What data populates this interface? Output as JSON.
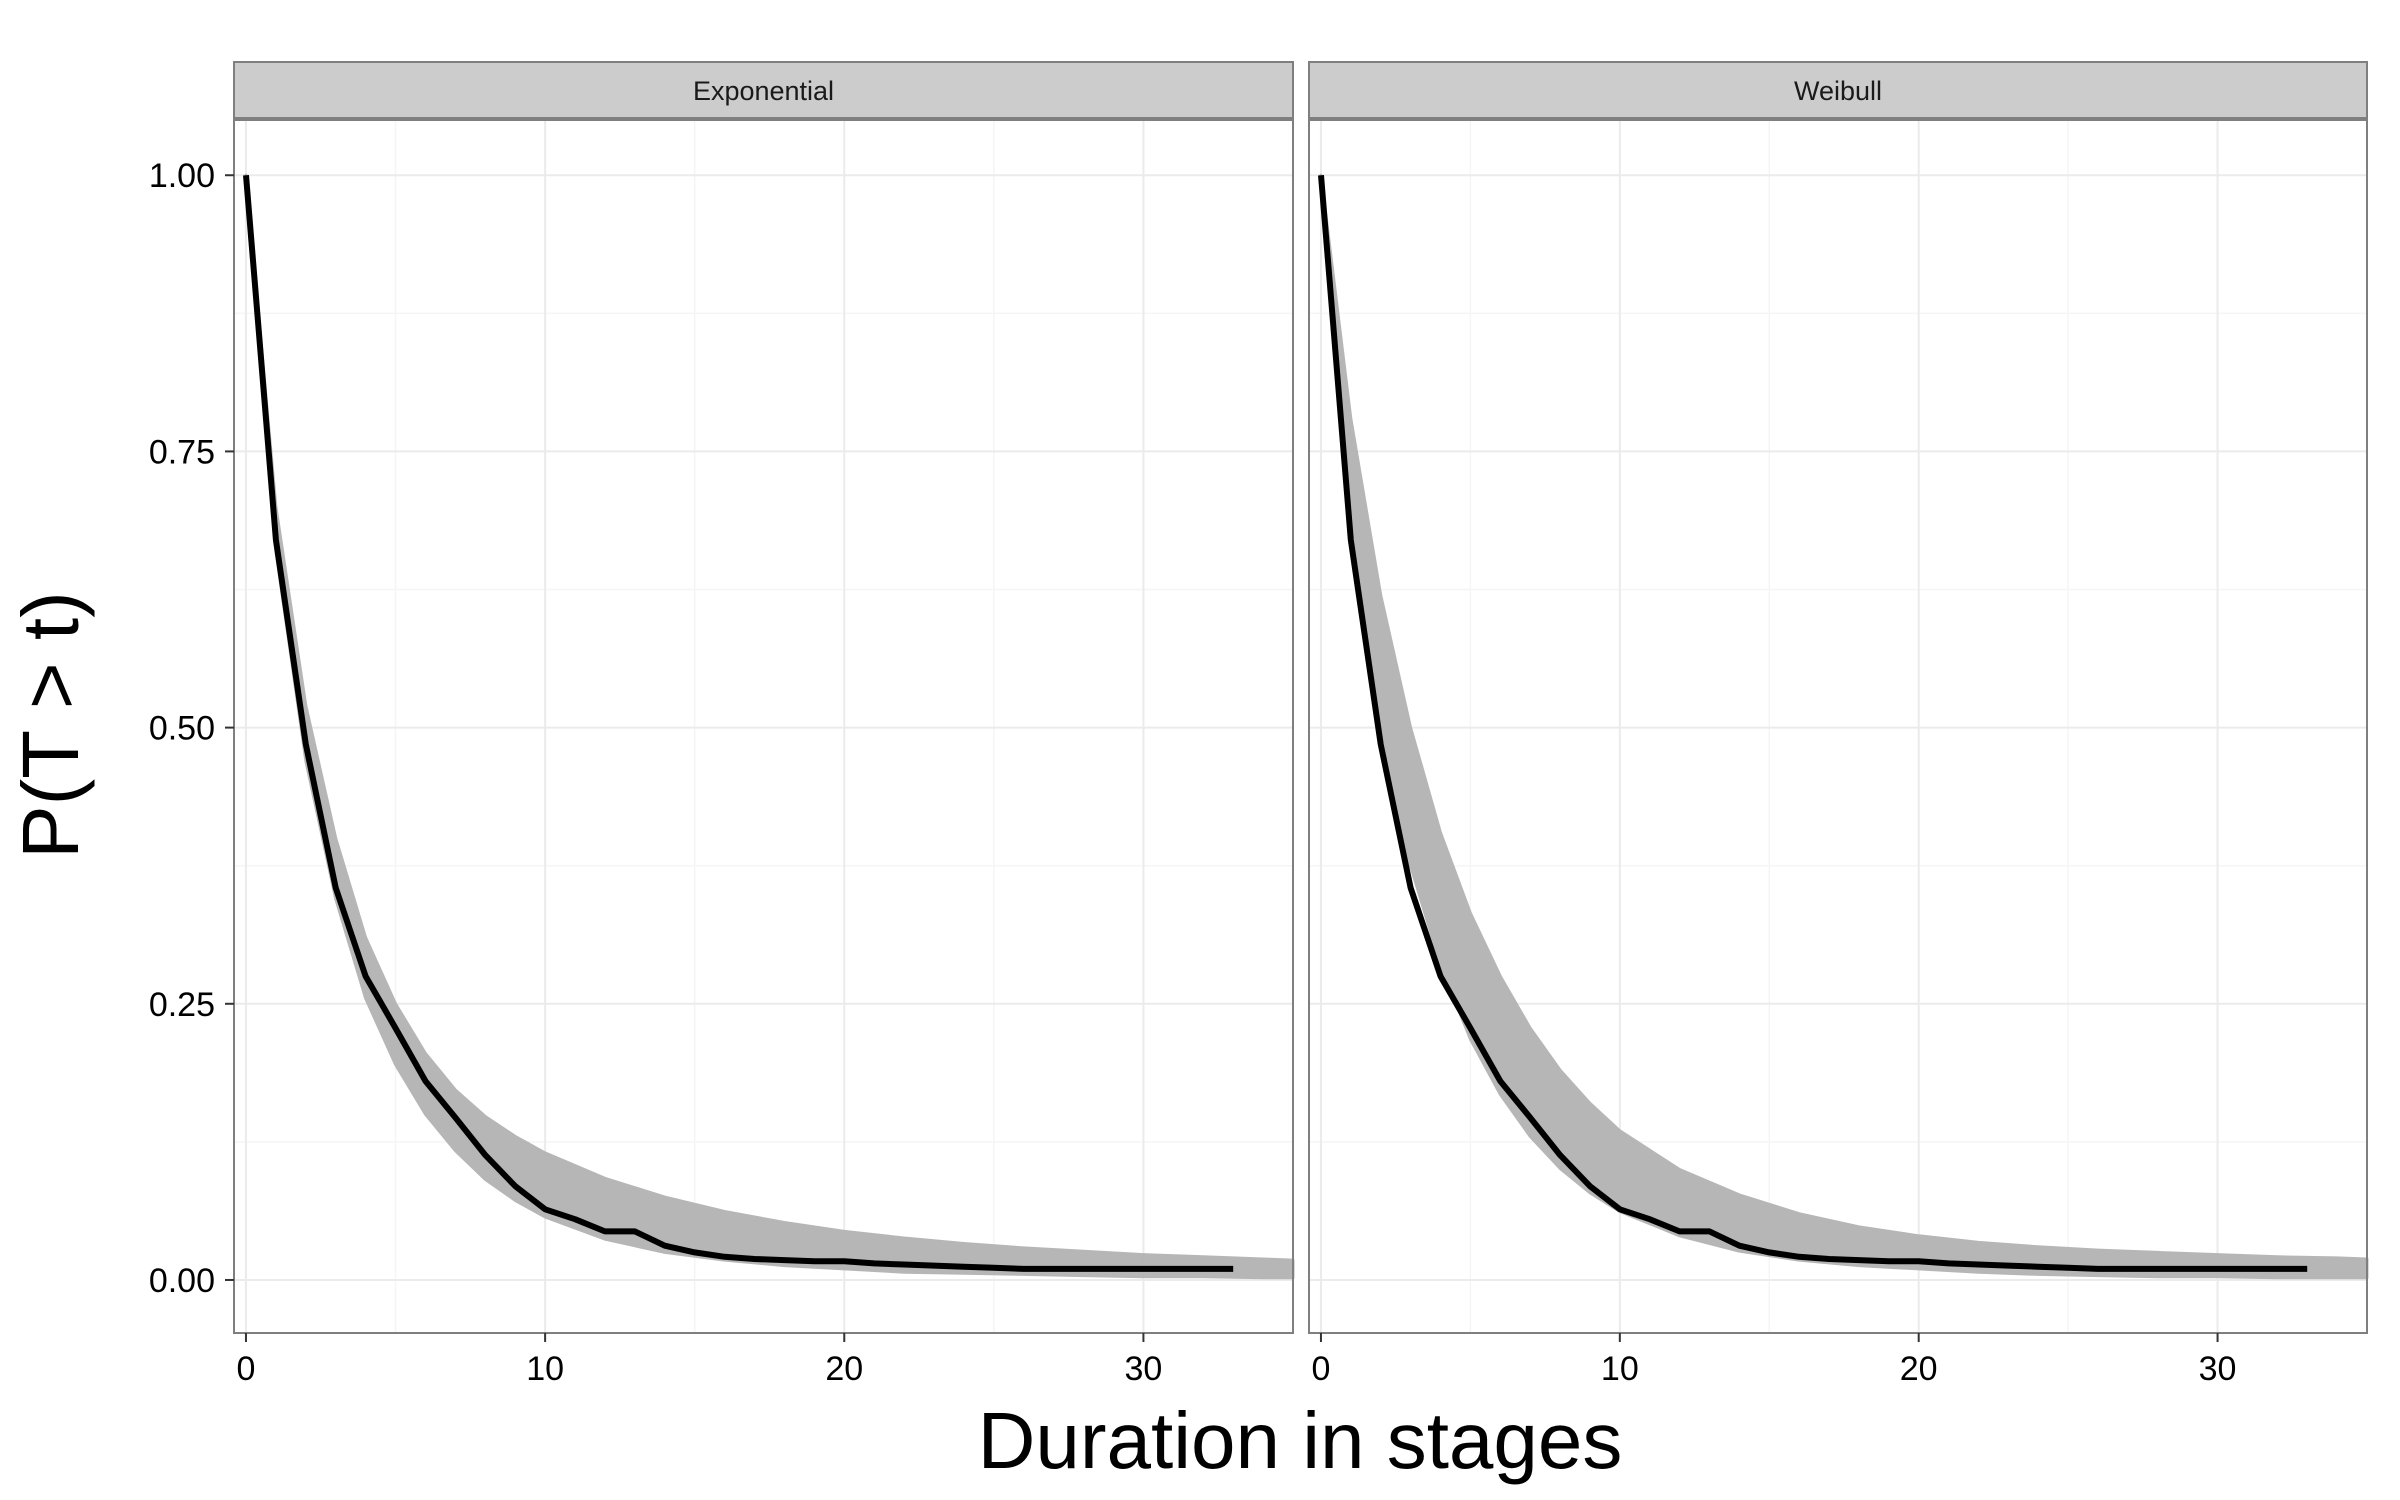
{
  "chart_data": {
    "type": "line",
    "xlabel": "Duration in stages",
    "ylabel": "P(T > t)",
    "xlim": [
      -0.4,
      35
    ],
    "ylim": [
      -0.048,
      1.05
    ],
    "x_ticks": [
      0,
      10,
      20,
      30
    ],
    "x_tick_labels": [
      "0",
      "10",
      "20",
      "30"
    ],
    "y_ticks": [
      0,
      0.25,
      0.5,
      0.75,
      1
    ],
    "y_tick_labels": [
      "0.00",
      "0.25",
      "0.50",
      "0.75",
      "1.00"
    ],
    "grid": true,
    "colors": {
      "observed": "#000000",
      "simulated": "#b3b3b3",
      "strip_bg": "#cccccc",
      "grid": "#ebebeb",
      "panel_border": "#7f7f7f"
    },
    "panels": [
      {
        "label": "Exponential",
        "observed": {
          "x": [
            0,
            1,
            2,
            3,
            4,
            5,
            6,
            7,
            8,
            9,
            10,
            11,
            12,
            13,
            14,
            15,
            16,
            17,
            18,
            19,
            20,
            21,
            22,
            23,
            24,
            25,
            26,
            27,
            28,
            29,
            30,
            31,
            32,
            33
          ],
          "y": [
            1.0,
            0.67,
            0.485,
            0.355,
            0.275,
            0.228,
            0.18,
            0.147,
            0.113,
            0.085,
            0.064,
            0.055,
            0.044,
            0.044,
            0.031,
            0.025,
            0.021,
            0.019,
            0.018,
            0.017,
            0.017,
            0.015,
            0.014,
            0.013,
            0.012,
            0.011,
            0.01,
            0.01,
            0.01,
            0.01,
            0.01,
            0.01,
            0.01,
            0.01
          ]
        },
        "envelope": {
          "x": [
            0,
            1,
            2,
            3,
            4,
            5,
            6,
            7,
            8,
            9,
            10,
            12,
            14,
            16,
            18,
            20,
            22,
            24,
            26,
            28,
            30,
            32,
            34,
            35
          ],
          "lower": [
            1.0,
            0.66,
            0.47,
            0.345,
            0.255,
            0.195,
            0.15,
            0.117,
            0.091,
            0.072,
            0.057,
            0.037,
            0.025,
            0.018,
            0.013,
            0.01,
            0.007,
            0.006,
            0.005,
            0.004,
            0.003,
            0.003,
            0.002,
            0.002
          ],
          "upper": [
            1.0,
            0.7,
            0.52,
            0.4,
            0.31,
            0.25,
            0.205,
            0.172,
            0.148,
            0.13,
            0.115,
            0.092,
            0.075,
            0.062,
            0.052,
            0.044,
            0.038,
            0.033,
            0.029,
            0.026,
            0.023,
            0.021,
            0.019,
            0.018
          ]
        }
      },
      {
        "label": "Weibull",
        "observed": {
          "x": [
            0,
            1,
            2,
            3,
            4,
            5,
            6,
            7,
            8,
            9,
            10,
            11,
            12,
            13,
            14,
            15,
            16,
            17,
            18,
            19,
            20,
            21,
            22,
            23,
            24,
            25,
            26,
            27,
            28,
            29,
            30,
            31,
            32,
            33
          ],
          "y": [
            1.0,
            0.67,
            0.485,
            0.355,
            0.275,
            0.228,
            0.18,
            0.147,
            0.113,
            0.085,
            0.064,
            0.055,
            0.044,
            0.044,
            0.031,
            0.025,
            0.021,
            0.019,
            0.018,
            0.017,
            0.017,
            0.015,
            0.014,
            0.013,
            0.012,
            0.011,
            0.01,
            0.01,
            0.01,
            0.01,
            0.01,
            0.01,
            0.01,
            0.01
          ]
        },
        "envelope": {
          "x": [
            0,
            1,
            2,
            3,
            4,
            5,
            6,
            7,
            8,
            9,
            10,
            12,
            14,
            16,
            18,
            20,
            22,
            24,
            26,
            28,
            30,
            32,
            34,
            35
          ],
          "lower": [
            1.0,
            0.7,
            0.505,
            0.375,
            0.285,
            0.218,
            0.168,
            0.13,
            0.101,
            0.079,
            0.062,
            0.04,
            0.026,
            0.018,
            0.013,
            0.01,
            0.007,
            0.005,
            0.004,
            0.003,
            0.003,
            0.002,
            0.002,
            0.002
          ],
          "upper": [
            1.0,
            0.78,
            0.62,
            0.5,
            0.405,
            0.332,
            0.275,
            0.228,
            0.19,
            0.16,
            0.135,
            0.1,
            0.077,
            0.06,
            0.048,
            0.04,
            0.034,
            0.03,
            0.027,
            0.025,
            0.023,
            0.021,
            0.02,
            0.019
          ]
        }
      }
    ]
  }
}
